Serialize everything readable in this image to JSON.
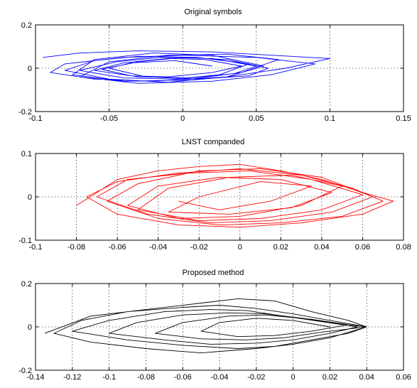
{
  "chart_data": [
    {
      "type": "line",
      "title": "Original symbols",
      "xlabel": "",
      "ylabel": "",
      "xlim": [
        -0.1,
        0.15
      ],
      "ylim": [
        -0.2,
        0.2
      ],
      "xticks": [
        -0.1,
        -0.05,
        0,
        0.05,
        0.1,
        0.15
      ],
      "xtick_labels": [
        "-0.1",
        "-0.05",
        "0",
        "0.05",
        "0.1",
        "0.15"
      ],
      "yticks": [
        -0.2,
        0,
        0.2
      ],
      "ytick_labels": [
        "-0.2",
        "0",
        "0.2"
      ],
      "grid": true,
      "line_color": "#0000ff",
      "series": [
        {
          "x": [
            -0.095,
            -0.07,
            -0.03,
            0.02,
            0.06,
            0.1,
            0.07,
            0.03,
            -0.02,
            -0.06,
            -0.09,
            -0.08,
            -0.04,
            0.0,
            0.05,
            0.09,
            0.06,
            0.02,
            -0.03,
            -0.07,
            -0.05,
            -0.01,
            0.03,
            0.065,
            0.04,
            0.0,
            -0.04,
            -0.075,
            -0.06,
            -0.02,
            0.02,
            0.055,
            0.03,
            -0.01,
            -0.05,
            -0.08,
            -0.06,
            -0.03,
            0.01,
            0.045,
            0.025,
            -0.005,
            -0.04,
            -0.07,
            -0.045,
            -0.015,
            0.02,
            0.05,
            0.035,
            0.005,
            -0.03,
            -0.06,
            -0.04,
            -0.01,
            0.015,
            0.04,
            0.02,
            -0.01,
            -0.035,
            -0.055,
            -0.03,
            0.0,
            0.03,
            0.058,
            0.045,
            0.01,
            -0.025,
            -0.05,
            -0.035,
            -0.005,
            0.02
          ],
          "y": [
            0.05,
            0.07,
            0.08,
            0.075,
            0.06,
            0.045,
            0.0,
            -0.04,
            -0.06,
            -0.05,
            -0.02,
            0.02,
            0.05,
            0.06,
            0.05,
            0.02,
            -0.03,
            -0.06,
            -0.07,
            -0.04,
            0.03,
            0.06,
            0.065,
            0.04,
            -0.02,
            -0.055,
            -0.06,
            -0.03,
            0.04,
            0.07,
            0.06,
            0.01,
            -0.04,
            -0.065,
            -0.05,
            -0.01,
            0.035,
            0.055,
            0.05,
            0.02,
            -0.03,
            -0.05,
            -0.045,
            -0.01,
            0.03,
            0.05,
            0.045,
            0.01,
            -0.025,
            -0.045,
            -0.04,
            -0.01,
            0.025,
            0.045,
            0.04,
            0.01,
            -0.02,
            -0.04,
            -0.035,
            -0.005,
            0.03,
            0.05,
            0.04,
            0.0,
            -0.035,
            -0.05,
            -0.04,
            0.0,
            0.025,
            0.035,
            0.01
          ]
        }
      ]
    },
    {
      "type": "line",
      "title": "LNST companded",
      "xlabel": "",
      "ylabel": "",
      "xlim": [
        -0.1,
        0.08
      ],
      "ylim": [
        -0.1,
        0.1
      ],
      "xticks": [
        -0.1,
        -0.08,
        -0.06,
        -0.04,
        -0.02,
        0,
        0.02,
        0.04,
        0.06,
        0.08
      ],
      "xtick_labels": [
        "-0.1",
        "-0.08",
        "-0.06",
        "-0.04",
        "-0.02",
        "0",
        "0.02",
        "0.04",
        "0.06",
        "0.08"
      ],
      "yticks": [
        -0.1,
        0,
        0.1
      ],
      "ytick_labels": [
        "-0.1",
        "0",
        "0.1"
      ],
      "grid": true,
      "line_color": "#ff0000",
      "series": [
        {
          "x": [
            -0.08,
            -0.06,
            -0.04,
            -0.02,
            0.0,
            0.02,
            0.04,
            0.06,
            0.075,
            0.06,
            0.03,
            0.0,
            -0.03,
            -0.06,
            -0.075,
            -0.06,
            -0.03,
            0.0,
            0.03,
            0.055,
            0.07,
            0.05,
            0.02,
            -0.01,
            -0.04,
            -0.065,
            -0.05,
            -0.02,
            0.01,
            0.04,
            0.065,
            0.045,
            0.015,
            -0.015,
            -0.045,
            -0.07,
            -0.055,
            -0.025,
            0.005,
            0.035,
            0.06,
            0.04,
            0.01,
            -0.02,
            -0.05,
            -0.035,
            -0.005,
            0.025,
            0.05,
            0.03,
            0.0,
            -0.03,
            -0.055,
            -0.04,
            -0.01,
            0.02,
            0.045,
            0.025,
            -0.005,
            -0.035,
            -0.02,
            0.01,
            0.035,
            0.015,
            -0.01,
            -0.03
          ],
          "y": [
            -0.02,
            0.04,
            0.06,
            0.07,
            0.075,
            0.06,
            0.04,
            0.01,
            -0.01,
            -0.04,
            -0.06,
            -0.07,
            -0.065,
            -0.04,
            0.0,
            0.035,
            0.055,
            0.065,
            0.05,
            0.02,
            -0.01,
            -0.045,
            -0.06,
            -0.065,
            -0.05,
            -0.01,
            0.03,
            0.06,
            0.065,
            0.045,
            0.0,
            -0.035,
            -0.055,
            -0.06,
            -0.04,
            0.0,
            0.04,
            0.055,
            0.06,
            0.04,
            0.005,
            -0.03,
            -0.05,
            -0.055,
            -0.03,
            0.02,
            0.045,
            0.05,
            0.025,
            -0.02,
            -0.045,
            -0.05,
            -0.02,
            0.025,
            0.045,
            0.04,
            0.01,
            -0.025,
            -0.04,
            -0.035,
            0.0,
            0.035,
            0.025,
            -0.01,
            -0.03,
            -0.01
          ]
        }
      ]
    },
    {
      "type": "line",
      "title": "Proposed method",
      "xlabel": "",
      "ylabel": "",
      "xlim": [
        -0.14,
        0.06
      ],
      "ylim": [
        -0.2,
        0.2
      ],
      "xticks": [
        -0.14,
        -0.12,
        -0.1,
        -0.08,
        -0.06,
        -0.04,
        -0.02,
        0,
        0.02,
        0.04,
        0.06
      ],
      "xtick_labels": [
        "-0.14",
        "-0.12",
        "-0.1",
        "-0.08",
        "-0.06",
        "-0.04",
        "-0.02",
        "0",
        "0.02",
        "0.04",
        "0.06"
      ],
      "yticks": [
        -0.2,
        0,
        0.2
      ],
      "ytick_labels": [
        "-0.2",
        "0",
        "0.2"
      ],
      "grid": true,
      "line_color": "#000000",
      "series": [
        {
          "x": [
            -0.135,
            -0.11,
            -0.08,
            -0.05,
            -0.03,
            -0.01,
            0.01,
            0.03,
            0.04,
            0.02,
            0.0,
            -0.02,
            -0.05,
            -0.08,
            -0.11,
            -0.13,
            -0.115,
            -0.09,
            -0.06,
            -0.04,
            -0.02,
            0.0,
            0.02,
            0.04,
            0.03,
            0.01,
            -0.01,
            -0.03,
            -0.06,
            -0.09,
            -0.12,
            -0.1,
            -0.07,
            -0.045,
            -0.025,
            -0.005,
            0.015,
            0.035,
            0.02,
            0.0,
            -0.02,
            -0.045,
            -0.07,
            -0.1,
            -0.085,
            -0.06,
            -0.035,
            -0.015,
            0.005,
            0.025,
            0.04,
            0.015,
            -0.005,
            -0.025,
            -0.05,
            -0.075,
            -0.06,
            -0.035,
            -0.015,
            0.01,
            0.03,
            0.01,
            -0.01,
            -0.03,
            -0.05,
            -0.04,
            -0.02,
            0.0,
            0.02
          ],
          "y": [
            -0.03,
            0.05,
            0.08,
            0.11,
            0.13,
            0.12,
            0.07,
            0.03,
            0.0,
            -0.05,
            -0.08,
            -0.1,
            -0.12,
            -0.1,
            -0.07,
            -0.03,
            0.03,
            0.07,
            0.09,
            0.1,
            0.085,
            0.06,
            0.03,
            0.0,
            -0.03,
            -0.06,
            -0.09,
            -0.1,
            -0.085,
            -0.06,
            -0.02,
            0.03,
            0.07,
            0.08,
            0.075,
            0.05,
            0.025,
            0.0,
            -0.03,
            -0.06,
            -0.075,
            -0.08,
            -0.06,
            -0.03,
            0.02,
            0.055,
            0.065,
            0.06,
            0.04,
            0.015,
            0.0,
            -0.025,
            -0.05,
            -0.06,
            -0.055,
            -0.03,
            0.02,
            0.05,
            0.055,
            0.035,
            0.01,
            -0.02,
            -0.04,
            -0.045,
            -0.02,
            0.02,
            0.04,
            0.03,
            0.0
          ]
        }
      ]
    }
  ]
}
